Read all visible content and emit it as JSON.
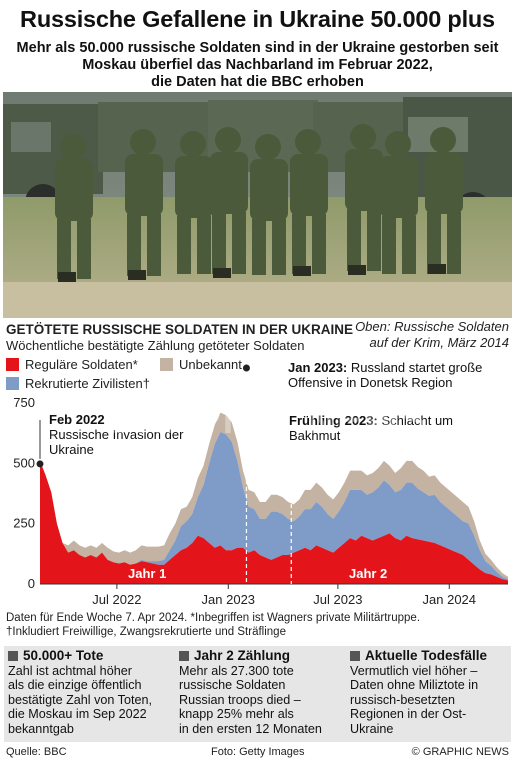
{
  "header": {
    "title": "Russische Gefallene in Ukraine 50.000 plus",
    "subtitle_lines": [
      "Mehr als 50.000 russische Soldaten sind in der Ukraine gestorben seit",
      "Moskau überfiel das Nachbarland im Februar 2022,",
      "die Daten hat die BBC erhoben"
    ]
  },
  "photo": {
    "caption_lines": [
      "Oben: Russische Soldaten",
      "auf der Krim, März 2014"
    ]
  },
  "chart_data": {
    "type": "area",
    "title": "GETÖTETE RUSSISCHE SOLDATEN IN DER UKRAINE",
    "subtitle": "Wöchentliche bestätigte Zählung getöteter Soldaten",
    "stacked": true,
    "x_range": [
      "2022-02-24",
      "2024-04-07"
    ],
    "ylim": [
      0,
      750
    ],
    "yticks": [
      0,
      250,
      500,
      750
    ],
    "xticks": [
      {
        "date": "2022-07-01",
        "label": "Jul 2022"
      },
      {
        "date": "2023-01-01",
        "label": "Jan 2023"
      },
      {
        "date": "2023-07-01",
        "label": "Jul 2023"
      },
      {
        "date": "2024-01-01",
        "label": "Jan 2024"
      }
    ],
    "grid": false,
    "legend_placement": "top-left",
    "series": [
      {
        "name": "Reguläre Soldaten*",
        "color": "#e3151a",
        "values": [
          510,
          450,
          380,
          250,
          170,
          130,
          140,
          120,
          110,
          120,
          110,
          130,
          100,
          90,
          85,
          90,
          80,
          85,
          95,
          90,
          85,
          80,
          80,
          100,
          120,
          140,
          150,
          170,
          200,
          190,
          170,
          150,
          160,
          140,
          140,
          150,
          150,
          130,
          140,
          120,
          110,
          100,
          110,
          120,
          120,
          130,
          140,
          150,
          140,
          160,
          150,
          140,
          130,
          150,
          170,
          190,
          180,
          200,
          190,
          180,
          190,
          200,
          210,
          190,
          180,
          200,
          190,
          185,
          180,
          175,
          170,
          160,
          150,
          140,
          130,
          120,
          100,
          80,
          60,
          45,
          40,
          30,
          20,
          15
        ]
      },
      {
        "name": "Rekrutierte Zivilisten†",
        "color": "#7f9cc8",
        "values": [
          0,
          0,
          0,
          0,
          0,
          0,
          0,
          0,
          0,
          0,
          0,
          0,
          0,
          0,
          0,
          0,
          0,
          0,
          5,
          5,
          10,
          15,
          20,
          40,
          60,
          100,
          110,
          120,
          160,
          220,
          330,
          430,
          470,
          480,
          450,
          360,
          250,
          190,
          170,
          150,
          160,
          200,
          190,
          170,
          150,
          130,
          140,
          160,
          170,
          180,
          170,
          150,
          140,
          150,
          170,
          200,
          210,
          190,
          180,
          200,
          210,
          230,
          200,
          190,
          210,
          220,
          230,
          210,
          200,
          190,
          200,
          180,
          170,
          160,
          150,
          140,
          150,
          120,
          80,
          50,
          35,
          20,
          10,
          5
        ]
      },
      {
        "name": "Unbekannt",
        "color": "#c4b2a2",
        "values": [
          0,
          0,
          0,
          0,
          0,
          30,
          40,
          40,
          40,
          40,
          40,
          40,
          50,
          45,
          45,
          50,
          50,
          55,
          60,
          60,
          60,
          60,
          60,
          70,
          70,
          70,
          60,
          70,
          80,
          80,
          80,
          80,
          80,
          80,
          80,
          80,
          70,
          70,
          70,
          70,
          70,
          70,
          70,
          70,
          70,
          70,
          70,
          80,
          80,
          80,
          80,
          80,
          80,
          80,
          80,
          80,
          80,
          80,
          80,
          80,
          80,
          80,
          80,
          80,
          90,
          90,
          90,
          90,
          90,
          80,
          80,
          80,
          80,
          80,
          80,
          80,
          70,
          60,
          40,
          30,
          25,
          20,
          15,
          10
        ]
      }
    ],
    "annotations": [
      {
        "date": "2022-02-24",
        "bold": "Feb 2022",
        "text": "Russische Invasion der Ukraine"
      },
      {
        "date": "2023-01-31",
        "bold": "Jan 2023:",
        "text": "Russland startet große Offensive in Donetsk Region"
      },
      {
        "date": "2023-04-15",
        "bold": "Frühling 2023:",
        "text": "Schlacht um Bakhmut"
      }
    ],
    "year_labels": [
      {
        "date": "2022-08-20",
        "label": "Jahr 1"
      },
      {
        "date": "2023-08-20",
        "label": "Jahr 2"
      }
    ]
  },
  "notes": {
    "line1": "Daten für Ende Woche 7. Apr 2024. *Inbegriffen ist Wagners private Militärtruppe.",
    "line2": "†Inkludiert Freiwillige,  Zwangsrekrutierte und Sträflinge"
  },
  "boxes": [
    {
      "title": "50.000+ Tote",
      "lines": [
        "Zahl ist achtmal höher",
        "als die einzige öffentlich",
        "bestätigte Zahl von Toten,",
        "die Moskau im Sep 2022",
        "bekanntgab"
      ]
    },
    {
      "title": "Jahr 2 Zählung",
      "lines": [
        "Mehr als 27.300 tote",
        "russische Soldaten",
        "Russian troops died –",
        "knapp 25% mehr als",
        "in den ersten 12 Monaten"
      ]
    },
    {
      "title": "Aktuelle Todesfälle",
      "lines": [
        "Vermutlich viel höher –",
        "Daten ohne Miliztote in",
        "russisch-besetzten",
        "Regionen in der Ost-",
        "Ukraine"
      ]
    }
  ],
  "footer": {
    "source": "Quelle: BBC",
    "photo_credit": "Foto: Getty Images",
    "copyright": "© GRAPHIC NEWS"
  },
  "watermark": "GRAPHIC NEWS"
}
